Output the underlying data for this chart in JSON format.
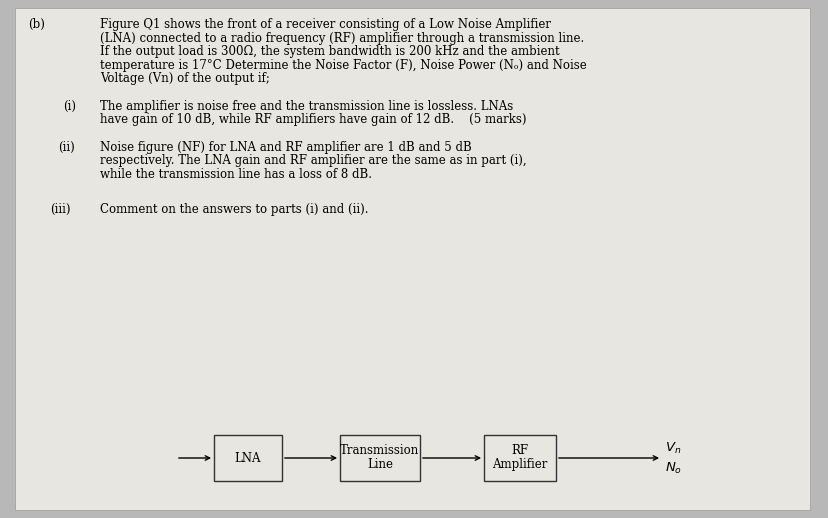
{
  "bg_color": "#b8b8b8",
  "paper_color": "#e8e6e0",
  "label_b": "(b)",
  "para_line1": "Figure Q1 shows the front of a receiver consisting of a Low Noise Amplifier",
  "para_line2": "(LNA) connected to a radio frequency (RF) amplifier through a transmission line.",
  "para_line3": "If the output load is 300Ω, the system bandwidth is 200 kHz and the ambient",
  "para_line4": "temperature is 17°C Determine the Noise Factor (F), Noise Power (Nₒ) and Noise",
  "para_line5": "Voltage (Vn) of the output if;",
  "item_i_label": "(i)",
  "item_i_line1": "The amplifier is noise free and the transmission line is lossless. LNAs",
  "item_i_line2": "have gain of 10 dB, while RF amplifiers have gain of 12 dB.    (5 marks)",
  "item_ii_label": "(ii)",
  "item_ii_line1": "Noise figure (NF) for LNA and RF amplifier are 1 dB and 5 dB",
  "item_ii_line2": "respectively. The LNA gain and RF amplifier are the same as in part (i),",
  "item_ii_line3": "while the transmission line has a loss of 8 dB.",
  "item_iii_label": "(iii)",
  "item_iii_text": "Comment on the answers to parts (i) and (ii).",
  "box_lna_label": "LNA",
  "box_trans_line1": "Transmission",
  "box_trans_line2": "Line",
  "box_rf_line1": "RF",
  "box_rf_line2": "Amplifier",
  "font_size": 8.5,
  "font_size_diag": 8.5
}
